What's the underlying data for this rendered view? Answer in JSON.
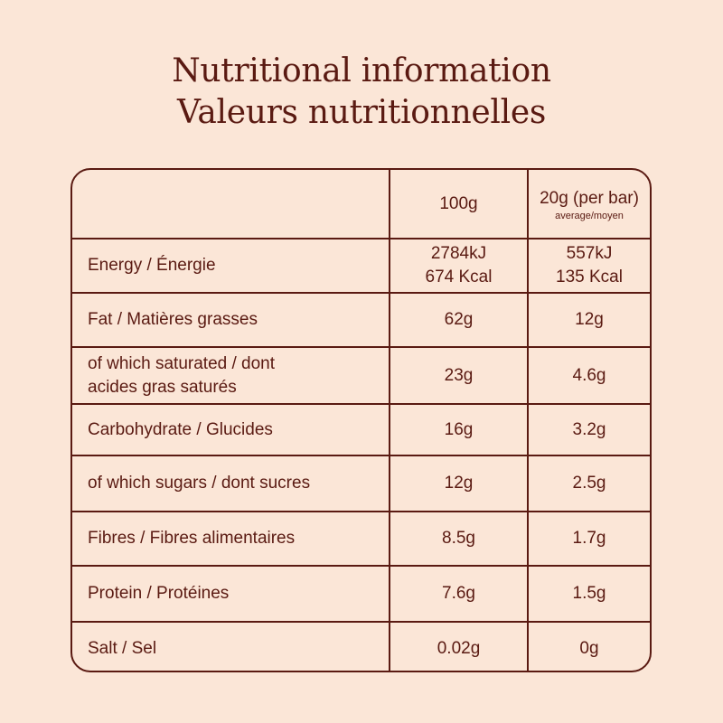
{
  "title": {
    "en": "Nutritional information",
    "fr": "Valeurs nutritionnelles"
  },
  "table": {
    "header": {
      "col1": "",
      "col2": "100g",
      "col3": "20g (per bar)",
      "col3_sub": "average/moyen"
    },
    "rows": [
      {
        "label": "Energy / Énergie",
        "v100_a": "2784kJ",
        "v100_b": "674 Kcal",
        "v20_a": "557kJ",
        "v20_b": "135 Kcal"
      },
      {
        "label": "Fat / Matières grasses",
        "v100": "62g",
        "v20": "12g"
      },
      {
        "label_a": "of which saturated / dont",
        "label_b": "acides gras saturés",
        "v100": "23g",
        "v20": "4.6g"
      },
      {
        "label": "Carbohydrate / Glucides",
        "v100": "16g",
        "v20": "3.2g"
      },
      {
        "label": "of which sugars / dont sucres",
        "v100": "12g",
        "v20": "2.5g"
      },
      {
        "label": "Fibres / Fibres alimentaires",
        "v100": "8.5g",
        "v20": "1.7g"
      },
      {
        "label": "Protein / Protéines",
        "v100": "7.6g",
        "v20": "1.5g"
      },
      {
        "label": "Salt / Sel",
        "v100": "0.02g",
        "v20": "0g"
      }
    ]
  },
  "colors": {
    "background": "#fbe6d7",
    "text": "#5a1a12"
  }
}
